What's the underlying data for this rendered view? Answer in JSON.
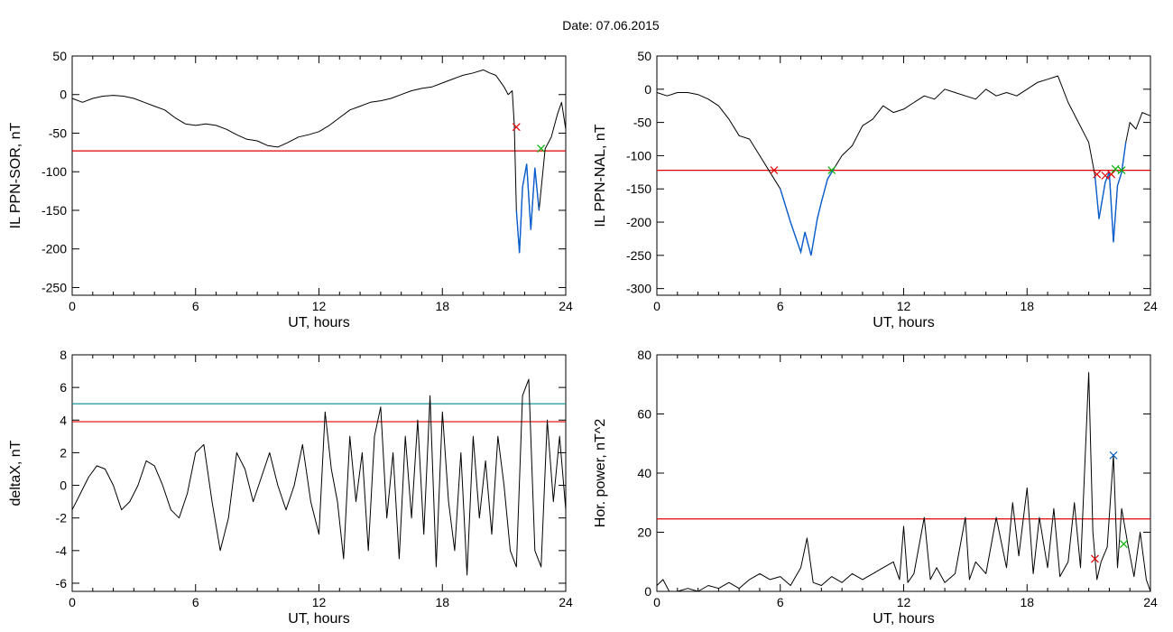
{
  "figure": {
    "title": "Date:  07.06.2015"
  },
  "colors": {
    "trace": "#000000",
    "threshold": "#e00000",
    "secondary_threshold": "#008b8b",
    "highlight": "#0a5fd0",
    "start_marker": "#e00000",
    "end_marker": "#00b000",
    "peak_marker": "#0a5fd0"
  },
  "chart_data": [
    {
      "id": "ppn-sor",
      "type": "line",
      "xlabel": "UT, hours",
      "ylabel": "IL PPN-SOR, nT",
      "xlim": [
        0,
        24
      ],
      "ylim": [
        -260,
        50
      ],
      "xticks": [
        0,
        6,
        12,
        18,
        24
      ],
      "yticks": [
        50,
        0,
        -50,
        -100,
        -150,
        -200,
        -250
      ],
      "threshold": -73,
      "x": [
        0,
        0.5,
        1,
        1.5,
        2,
        2.5,
        3,
        3.5,
        4,
        4.5,
        5,
        5.5,
        6,
        6.5,
        7,
        7.5,
        8,
        8.5,
        9,
        9.5,
        10,
        10.5,
        11,
        11.5,
        12,
        12.5,
        13,
        13.5,
        14,
        14.5,
        15,
        15.5,
        16,
        16.5,
        17,
        17.5,
        18,
        18.5,
        19,
        19.5,
        20,
        20.3,
        20.6,
        21,
        21.2,
        21.4,
        21.5,
        21.6,
        21.75,
        21.9,
        22.1,
        22.3,
        22.5,
        22.7,
        23,
        23.3,
        23.6,
        23.8,
        24
      ],
      "values": [
        -5,
        -10,
        -5,
        -2,
        -1,
        -2,
        -5,
        -10,
        -15,
        -20,
        -30,
        -38,
        -40,
        -38,
        -40,
        -45,
        -52,
        -58,
        -60,
        -66,
        -68,
        -62,
        -55,
        -52,
        -48,
        -40,
        -30,
        -20,
        -15,
        -10,
        -8,
        -5,
        0,
        5,
        8,
        10,
        15,
        20,
        25,
        28,
        32,
        28,
        25,
        10,
        0,
        5,
        -40,
        -150,
        -205,
        -120,
        -90,
        -175,
        -95,
        -150,
        -70,
        -55,
        -25,
        -10,
        -45
      ],
      "highlight_ranges": [
        [
          21.6,
          22.9
        ]
      ],
      "markers": [
        {
          "kind": "start",
          "x": 21.6,
          "y": -42
        },
        {
          "kind": "end",
          "x": 22.8,
          "y": -70
        }
      ]
    },
    {
      "id": "ppn-nal",
      "type": "line",
      "xlabel": "UT, hours",
      "ylabel": "IL PPN-NAL, nT",
      "xlim": [
        0,
        24
      ],
      "ylim": [
        -310,
        50
      ],
      "xticks": [
        0,
        6,
        12,
        18,
        24
      ],
      "yticks": [
        50,
        0,
        -50,
        -100,
        -150,
        -200,
        -250,
        -300
      ],
      "threshold": -122,
      "x": [
        0,
        0.5,
        1,
        1.5,
        2,
        2.5,
        3,
        3.5,
        4,
        4.5,
        5,
        5.5,
        6,
        6.5,
        7,
        7.2,
        7.5,
        7.8,
        8,
        8.3,
        8.6,
        9,
        9.5,
        10,
        10.5,
        11,
        11.5,
        12,
        12.5,
        13,
        13.5,
        14,
        14.5,
        15,
        15.5,
        16,
        16.5,
        17,
        17.5,
        18,
        18.5,
        19,
        19.5,
        20,
        20.5,
        21,
        21.3,
        21.5,
        21.8,
        22,
        22.2,
        22.4,
        22.6,
        22.8,
        23,
        23.3,
        23.6,
        24
      ],
      "values": [
        -5,
        -10,
        -5,
        -5,
        -8,
        -15,
        -25,
        -45,
        -70,
        -75,
        -100,
        -125,
        -150,
        -200,
        -245,
        -215,
        -250,
        -195,
        -170,
        -135,
        -120,
        -100,
        -85,
        -55,
        -45,
        -25,
        -35,
        -30,
        -20,
        -10,
        -15,
        0,
        -5,
        -10,
        -15,
        0,
        -10,
        -5,
        -10,
        0,
        10,
        15,
        20,
        -20,
        -50,
        -80,
        -130,
        -195,
        -140,
        -125,
        -230,
        -145,
        -125,
        -80,
        -50,
        -60,
        -35,
        -40
      ],
      "highlight_ranges": [
        [
          5.6,
          8.6
        ],
        [
          21.3,
          22.8
        ]
      ],
      "markers": [
        {
          "kind": "start",
          "x": 5.7,
          "y": -122
        },
        {
          "kind": "end",
          "x": 8.5,
          "y": -122
        },
        {
          "kind": "start",
          "x": 21.4,
          "y": -128
        },
        {
          "kind": "start",
          "x": 21.8,
          "y": -130
        },
        {
          "kind": "start",
          "x": 22.1,
          "y": -128
        },
        {
          "kind": "end",
          "x": 22.3,
          "y": -120
        },
        {
          "kind": "end",
          "x": 22.6,
          "y": -122
        }
      ]
    },
    {
      "id": "deltax",
      "type": "line",
      "xlabel": "UT, hours",
      "ylabel": "deltaX, nT",
      "xlim": [
        0,
        24
      ],
      "ylim": [
        -6.5,
        8
      ],
      "xticks": [
        0,
        6,
        12,
        18,
        24
      ],
      "yticks": [
        8,
        6,
        4,
        2,
        0,
        -2,
        -4,
        -6
      ],
      "threshold": 3.9,
      "secondary_threshold": 5,
      "x": [
        0,
        0.4,
        0.8,
        1.2,
        1.6,
        2,
        2.4,
        2.8,
        3.2,
        3.6,
        4,
        4.4,
        4.8,
        5.2,
        5.6,
        6,
        6.4,
        6.8,
        7.2,
        7.6,
        8,
        8.4,
        8.8,
        9.2,
        9.6,
        10,
        10.4,
        10.8,
        11.2,
        11.6,
        12,
        12.3,
        12.6,
        12.9,
        13.2,
        13.5,
        13.8,
        14.1,
        14.4,
        14.7,
        15,
        15.3,
        15.6,
        15.9,
        16.2,
        16.5,
        16.8,
        17.1,
        17.4,
        17.7,
        18,
        18.3,
        18.6,
        18.9,
        19.2,
        19.5,
        19.8,
        20.1,
        20.4,
        20.7,
        21,
        21.3,
        21.6,
        21.9,
        22.2,
        22.5,
        22.8,
        23.1,
        23.4,
        23.7,
        24
      ],
      "values": [
        -1.5,
        -0.5,
        0.5,
        1.2,
        1,
        0,
        -1.5,
        -1,
        0,
        1.5,
        1.2,
        0,
        -1.5,
        -2,
        -0.5,
        2,
        2.5,
        -1,
        -4,
        -2,
        2,
        1,
        -1,
        0.5,
        2,
        0,
        -1.5,
        0,
        2.5,
        -1,
        -3,
        4.5,
        1,
        -1,
        -4.5,
        3,
        -1,
        2,
        -4,
        3,
        4.8,
        -2,
        2,
        -4.5,
        3,
        -2,
        4,
        -3,
        5.5,
        -5,
        4.5,
        -1,
        -4,
        2,
        -5.5,
        3,
        -2,
        1.5,
        -3,
        3,
        0,
        -4,
        -5,
        5.5,
        6.5,
        -4,
        -5,
        4,
        -1,
        3,
        -1.5
      ],
      "markers": []
    },
    {
      "id": "hor-power",
      "type": "line",
      "xlabel": "UT, hours",
      "ylabel": "Hor. power, nT^2",
      "xlim": [
        0,
        24
      ],
      "ylim": [
        0,
        80
      ],
      "xticks": [
        0,
        6,
        12,
        18,
        24
      ],
      "yticks": [
        80,
        60,
        40,
        20,
        0
      ],
      "threshold": 24.5,
      "x": [
        0,
        0.3,
        0.6,
        1,
        1.5,
        2,
        2.5,
        3,
        3.5,
        4,
        4.5,
        5,
        5.5,
        6,
        6.5,
        7,
        7.3,
        7.6,
        8,
        8.5,
        9,
        9.5,
        10,
        10.5,
        11,
        11.5,
        11.8,
        12,
        12.2,
        12.5,
        13,
        13.3,
        13.6,
        14,
        14.5,
        15,
        15.2,
        15.5,
        16,
        16.5,
        17,
        17.3,
        17.6,
        18,
        18.3,
        18.6,
        19,
        19.3,
        19.6,
        20,
        20.3,
        20.6,
        21,
        21.2,
        21.4,
        21.6,
        21.9,
        22.2,
        22.4,
        22.6,
        22.9,
        23.2,
        23.5,
        23.8,
        24
      ],
      "values": [
        2,
        4,
        0,
        0,
        1,
        0,
        2,
        1,
        3,
        1,
        4,
        6,
        4,
        5,
        2,
        8,
        18,
        3,
        2,
        5,
        3,
        6,
        4,
        6,
        8,
        10,
        4,
        22,
        3,
        6,
        25,
        4,
        8,
        3,
        6,
        25,
        4,
        10,
        6,
        25,
        8,
        30,
        12,
        35,
        6,
        25,
        8,
        28,
        5,
        10,
        30,
        8,
        74,
        20,
        4,
        10,
        15,
        46,
        8,
        28,
        16,
        5,
        20,
        4,
        0
      ],
      "markers": [
        {
          "kind": "start",
          "x": 21.3,
          "y": 11
        },
        {
          "kind": "peak",
          "x": 22.2,
          "y": 46
        },
        {
          "kind": "end",
          "x": 22.7,
          "y": 16
        }
      ]
    }
  ]
}
